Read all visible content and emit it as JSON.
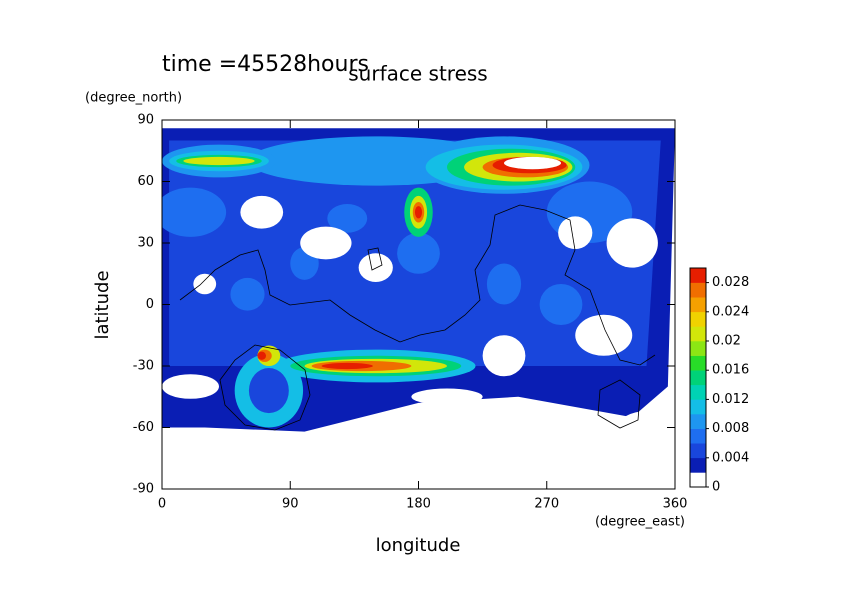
{
  "chart_data": {
    "type": "contour",
    "title": "surface stress",
    "subtitle": "time =45528hours",
    "x_label": "longitude",
    "x_unit": "(degree_east)",
    "y_label": "latitude",
    "y_unit": "(degree_north)",
    "xlim": [
      0,
      360
    ],
    "xticks": [
      0,
      90,
      180,
      270,
      360
    ],
    "ylim": [
      -90,
      90
    ],
    "yticks": [
      -90,
      -60,
      -30,
      0,
      30,
      60,
      90
    ],
    "colorbar": {
      "clim": [
        0,
        0.03
      ],
      "ticks": [
        0,
        0.004,
        0.008,
        0.012,
        0.016,
        0.02,
        0.024,
        0.028
      ],
      "colors": [
        "#ffffff",
        "#0a1eb4",
        "#1946dc",
        "#1e6ef0",
        "#1e96f0",
        "#14bee6",
        "#00d2b4",
        "#00d278",
        "#28dc28",
        "#8ce614",
        "#d2e60a",
        "#f0d200",
        "#f5a000",
        "#f06e00",
        "#e61e00"
      ]
    }
  }
}
